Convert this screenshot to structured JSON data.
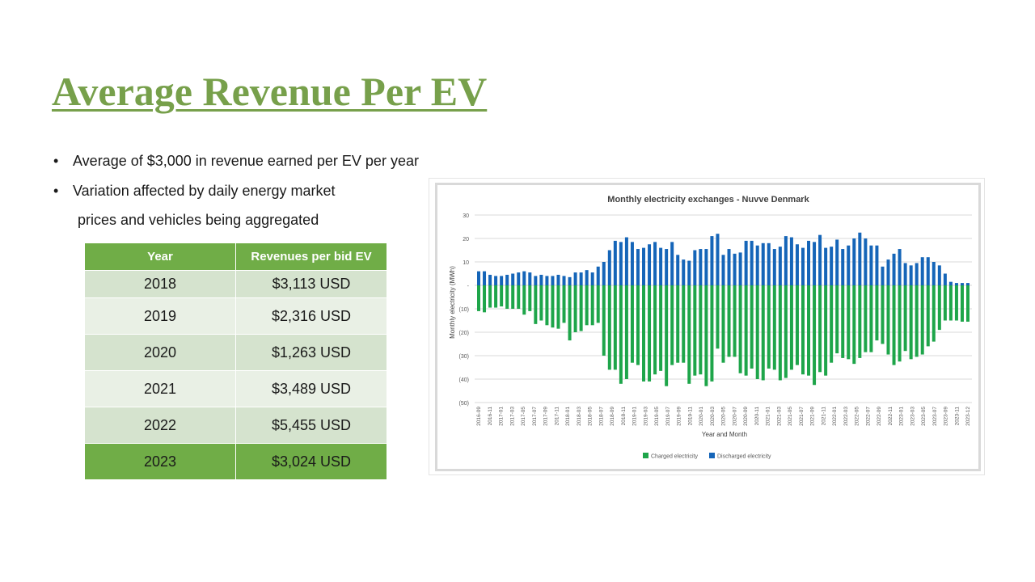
{
  "slide": {
    "title": "Average Revenue Per EV",
    "bullets": [
      {
        "dot": "•",
        "text": "Average of $3,000 in revenue earned per EV per year"
      },
      {
        "dot": "•",
        "text": "Variation affected by daily energy market"
      }
    ],
    "bullet_continuation": "prices and vehicles being aggregated"
  },
  "table": {
    "headers": [
      "Year",
      "Revenues per bid EV"
    ],
    "rows": [
      [
        "2018",
        "$3,113 USD"
      ],
      [
        "2019",
        "$2,316 USD"
      ],
      [
        "2020",
        "$1,263 USD"
      ],
      [
        "2021",
        "$3,489 USD"
      ],
      [
        "2022",
        "$5,455 USD"
      ],
      [
        "2023",
        "$3,024 USD"
      ]
    ]
  },
  "colors": {
    "title": "#77a04b",
    "table_header": "#70ad47",
    "charged": "#1ea54a",
    "discharged": "#1565b8"
  },
  "chart_data": {
    "type": "bar",
    "title": "Monthly electricity exchanges - Nuvve Denmark",
    "xlabel": "Year and Month",
    "ylabel": "Monthly electricity (MWh)",
    "ylim": [
      -50,
      30
    ],
    "yticks": [
      30,
      20,
      10,
      0,
      -10,
      -20,
      -30,
      -40,
      -50
    ],
    "ytick_labels": [
      "30",
      "20",
      "10",
      "-",
      "(10)",
      "(20)",
      "(30)",
      "(40)",
      "(50)"
    ],
    "grid": true,
    "legend_position": "bottom",
    "x_tick_labels": [
      "2016-09",
      "2016-11",
      "2017-01",
      "2017-03",
      "2017-05",
      "2017-07",
      "2017-09",
      "2017-11",
      "2018-01",
      "2018-03",
      "2018-05",
      "2018-07",
      "2018-09",
      "2018-11",
      "2019-01",
      "2019-03",
      "2019-05",
      "2019-07",
      "2019-09",
      "2019-11",
      "2020-01",
      "2020-03",
      "2020-05",
      "2020-07",
      "2020-09",
      "2020-11",
      "2021-01",
      "2021-03",
      "2021-05",
      "2021-07",
      "2021-09",
      "2021-11",
      "2022-01",
      "2022-03",
      "2022-05",
      "2022-07",
      "2022-09",
      "2022-11",
      "2023-01",
      "2023-03",
      "2023-05",
      "2023-07",
      "2023-09",
      "2023-11",
      "2023-12"
    ],
    "series": [
      {
        "name": "Charged electricity",
        "color": "#1ea54a",
        "values": [
          -11,
          -11.5,
          -9.5,
          -9.5,
          -9,
          -10,
          -10,
          -10,
          -12.5,
          -11,
          -16.5,
          -15,
          -17,
          -18,
          -18.5,
          -16,
          -23.5,
          -20,
          -19.5,
          -17,
          -17,
          -16,
          -30,
          -36,
          -36,
          -42,
          -40,
          -33,
          -34,
          -41,
          -41,
          -38,
          -36.5,
          -43,
          -34,
          -33,
          -33,
          -42,
          -38.5,
          -38,
          -43,
          -41,
          -27,
          -33,
          -30.5,
          -30.5,
          -37.5,
          -38.5,
          -35.5,
          -40,
          -40.5,
          -35.5,
          -36,
          -40.5,
          -39.5,
          -36,
          -34,
          -38,
          -38.5,
          -42.5,
          -37,
          -38.5,
          -33,
          -29,
          -31,
          -31.5,
          -33.5,
          -31,
          -28.5,
          -28.5,
          -23.5,
          -25,
          -29.5,
          -34,
          -32.5,
          -28,
          -31.5,
          -30.5,
          -29.5,
          -26,
          -24,
          -19,
          -15,
          -15,
          -15,
          -15.5,
          -15.5
        ]
      },
      {
        "name": "Discharged electricity",
        "color": "#1565b8",
        "values": [
          6,
          6,
          4.5,
          4,
          4,
          4.5,
          5,
          5.5,
          6,
          5.5,
          4,
          4.5,
          4,
          4,
          4.5,
          4,
          3.5,
          5.5,
          5.5,
          6.5,
          5.5,
          8,
          10,
          15,
          19,
          18.5,
          20.5,
          18.5,
          15.5,
          16,
          17.5,
          18.5,
          16,
          15.5,
          18.5,
          13,
          11,
          10.5,
          15,
          15.5,
          15.5,
          21,
          22,
          13,
          15.5,
          13.5,
          14,
          19,
          19,
          17,
          18,
          18,
          15.5,
          16.5,
          21,
          20.5,
          17.5,
          16,
          19,
          18.5,
          21.5,
          16,
          16.5,
          19.5,
          15.5,
          17,
          20,
          22.5,
          20,
          17,
          17,
          8,
          11,
          13.5,
          15.5,
          9.5,
          8.5,
          9.5,
          12,
          12,
          10,
          8.5,
          5,
          1.5,
          1,
          1,
          1
        ]
      }
    ]
  }
}
